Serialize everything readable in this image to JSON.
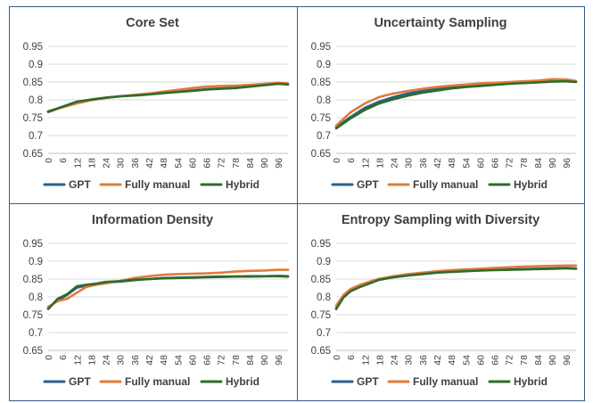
{
  "colors": {
    "GPT": "#2b5f8a",
    "Fully manual": "#e07b39",
    "Hybrid": "#2e6b2a"
  },
  "legend": [
    "GPT",
    "Fully manual",
    "Hybrid"
  ],
  "chart_data": [
    {
      "type": "line",
      "title": "Core Set",
      "ylim": [
        0.65,
        0.95
      ],
      "yticks": [
        "0.95",
        "0.9",
        "0.85",
        "0.8",
        "0.75",
        "0.7",
        "0.65"
      ],
      "xticks": [
        "0",
        "6",
        "12",
        "18",
        "24",
        "30",
        "36",
        "42",
        "48",
        "54",
        "60",
        "66",
        "72",
        "78",
        "84",
        "90",
        "96"
      ],
      "xlim": [
        0,
        100
      ],
      "grid": true,
      "legend_position": "bottom",
      "series": [
        {
          "name": "GPT",
          "points": [
            [
              0,
              0.766
            ],
            [
              6,
              0.78
            ],
            [
              12,
              0.793
            ],
            [
              18,
              0.8
            ],
            [
              24,
              0.806
            ],
            [
              30,
              0.81
            ],
            [
              36,
              0.813
            ],
            [
              42,
              0.816
            ],
            [
              48,
              0.82
            ],
            [
              54,
              0.823
            ],
            [
              60,
              0.826
            ],
            [
              66,
              0.83
            ],
            [
              72,
              0.832
            ],
            [
              78,
              0.834
            ],
            [
              84,
              0.838
            ],
            [
              90,
              0.842
            ],
            [
              96,
              0.846
            ],
            [
              100,
              0.844
            ]
          ]
        },
        {
          "name": "Fully manual",
          "points": [
            [
              0,
              0.768
            ],
            [
              6,
              0.779
            ],
            [
              12,
              0.79
            ],
            [
              18,
              0.799
            ],
            [
              24,
              0.805
            ],
            [
              30,
              0.81
            ],
            [
              36,
              0.814
            ],
            [
              42,
              0.818
            ],
            [
              48,
              0.823
            ],
            [
              54,
              0.828
            ],
            [
              60,
              0.833
            ],
            [
              66,
              0.837
            ],
            [
              72,
              0.839
            ],
            [
              78,
              0.84
            ],
            [
              84,
              0.842
            ],
            [
              90,
              0.845
            ],
            [
              96,
              0.848
            ],
            [
              100,
              0.846
            ]
          ]
        },
        {
          "name": "Hybrid",
          "points": [
            [
              0,
              0.767
            ],
            [
              6,
              0.781
            ],
            [
              12,
              0.795
            ],
            [
              18,
              0.801
            ],
            [
              24,
              0.806
            ],
            [
              30,
              0.81
            ],
            [
              36,
              0.812
            ],
            [
              42,
              0.815
            ],
            [
              48,
              0.819
            ],
            [
              54,
              0.822
            ],
            [
              60,
              0.825
            ],
            [
              66,
              0.829
            ],
            [
              72,
              0.831
            ],
            [
              78,
              0.833
            ],
            [
              84,
              0.837
            ],
            [
              90,
              0.841
            ],
            [
              96,
              0.845
            ],
            [
              100,
              0.843
            ]
          ]
        }
      ]
    },
    {
      "type": "line",
      "title": "Uncertainty Sampling",
      "ylim": [
        0.65,
        0.95
      ],
      "yticks": [
        "0.95",
        "0.9",
        "0.85",
        "0.8",
        "0.75",
        "0.7",
        "0.65"
      ],
      "xticks": [
        "0",
        "6",
        "12",
        "18",
        "24",
        "30",
        "36",
        "42",
        "48",
        "54",
        "60",
        "66",
        "72",
        "78",
        "84",
        "90",
        "96"
      ],
      "xlim": [
        0,
        100
      ],
      "grid": true,
      "legend_position": "bottom",
      "series": [
        {
          "name": "GPT",
          "points": [
            [
              0,
              0.723
            ],
            [
              6,
              0.752
            ],
            [
              12,
              0.778
            ],
            [
              18,
              0.795
            ],
            [
              24,
              0.808
            ],
            [
              30,
              0.818
            ],
            [
              36,
              0.825
            ],
            [
              42,
              0.832
            ],
            [
              48,
              0.837
            ],
            [
              54,
              0.841
            ],
            [
              60,
              0.843
            ],
            [
              66,
              0.845
            ],
            [
              72,
              0.847
            ],
            [
              78,
              0.849
            ],
            [
              84,
              0.851
            ],
            [
              90,
              0.852
            ],
            [
              96,
              0.853
            ],
            [
              100,
              0.851
            ]
          ]
        },
        {
          "name": "Fully manual",
          "points": [
            [
              0,
              0.728
            ],
            [
              6,
              0.765
            ],
            [
              12,
              0.79
            ],
            [
              18,
              0.808
            ],
            [
              24,
              0.818
            ],
            [
              30,
              0.825
            ],
            [
              36,
              0.831
            ],
            [
              42,
              0.836
            ],
            [
              48,
              0.84
            ],
            [
              54,
              0.843
            ],
            [
              60,
              0.846
            ],
            [
              66,
              0.848
            ],
            [
              72,
              0.85
            ],
            [
              78,
              0.852
            ],
            [
              84,
              0.854
            ],
            [
              90,
              0.858
            ],
            [
              96,
              0.857
            ],
            [
              100,
              0.853
            ]
          ]
        },
        {
          "name": "Hybrid",
          "points": [
            [
              0,
              0.72
            ],
            [
              6,
              0.748
            ],
            [
              12,
              0.772
            ],
            [
              18,
              0.79
            ],
            [
              24,
              0.802
            ],
            [
              30,
              0.812
            ],
            [
              36,
              0.82
            ],
            [
              42,
              0.826
            ],
            [
              48,
              0.832
            ],
            [
              54,
              0.836
            ],
            [
              60,
              0.839
            ],
            [
              66,
              0.842
            ],
            [
              72,
              0.845
            ],
            [
              78,
              0.847
            ],
            [
              84,
              0.849
            ],
            [
              90,
              0.851
            ],
            [
              96,
              0.852
            ],
            [
              100,
              0.85
            ]
          ]
        }
      ]
    },
    {
      "type": "line",
      "title": "Information Density",
      "ylim": [
        0.65,
        0.95
      ],
      "yticks": [
        "0.95",
        "0.9",
        "0.85",
        "0.8",
        "0.75",
        "0.7",
        "0.65"
      ],
      "xticks": [
        "0",
        "6",
        "12",
        "18",
        "24",
        "30",
        "36",
        "42",
        "48",
        "54",
        "60",
        "66",
        "72",
        "78",
        "84",
        "90",
        "96"
      ],
      "xlim": [
        0,
        100
      ],
      "grid": true,
      "legend_position": "bottom",
      "series": [
        {
          "name": "GPT",
          "points": [
            [
              0,
              0.769
            ],
            [
              4,
              0.79
            ],
            [
              8,
              0.806
            ],
            [
              12,
              0.826
            ],
            [
              16,
              0.832
            ],
            [
              20,
              0.836
            ],
            [
              24,
              0.84
            ],
            [
              30,
              0.843
            ],
            [
              36,
              0.847
            ],
            [
              42,
              0.85
            ],
            [
              48,
              0.853
            ],
            [
              54,
              0.854
            ],
            [
              60,
              0.855
            ],
            [
              66,
              0.856
            ],
            [
              72,
              0.857
            ],
            [
              78,
              0.857
            ],
            [
              84,
              0.858
            ],
            [
              90,
              0.858
            ],
            [
              96,
              0.859
            ],
            [
              100,
              0.858
            ]
          ]
        },
        {
          "name": "Fully manual",
          "points": [
            [
              0,
              0.772
            ],
            [
              4,
              0.788
            ],
            [
              8,
              0.795
            ],
            [
              12,
              0.812
            ],
            [
              16,
              0.828
            ],
            [
              20,
              0.834
            ],
            [
              24,
              0.838
            ],
            [
              30,
              0.845
            ],
            [
              36,
              0.853
            ],
            [
              42,
              0.858
            ],
            [
              48,
              0.862
            ],
            [
              54,
              0.864
            ],
            [
              60,
              0.865
            ],
            [
              66,
              0.866
            ],
            [
              72,
              0.868
            ],
            [
              78,
              0.871
            ],
            [
              84,
              0.873
            ],
            [
              90,
              0.874
            ],
            [
              96,
              0.876
            ],
            [
              100,
              0.876
            ]
          ]
        },
        {
          "name": "Hybrid",
          "points": [
            [
              0,
              0.766
            ],
            [
              4,
              0.795
            ],
            [
              8,
              0.808
            ],
            [
              12,
              0.83
            ],
            [
              16,
              0.834
            ],
            [
              20,
              0.837
            ],
            [
              24,
              0.842
            ],
            [
              30,
              0.844
            ],
            [
              36,
              0.848
            ],
            [
              42,
              0.85
            ],
            [
              48,
              0.852
            ],
            [
              54,
              0.853
            ],
            [
              60,
              0.854
            ],
            [
              66,
              0.855
            ],
            [
              72,
              0.856
            ],
            [
              78,
              0.857
            ],
            [
              84,
              0.857
            ],
            [
              90,
              0.858
            ],
            [
              96,
              0.858
            ],
            [
              100,
              0.857
            ]
          ]
        }
      ]
    },
    {
      "type": "line",
      "title": "Entropy Sampling with Diversity",
      "ylim": [
        0.65,
        0.95
      ],
      "yticks": [
        "0.95",
        "0.9",
        "0.85",
        "0.8",
        "0.75",
        "0.7",
        "0.65"
      ],
      "xticks": [
        "0",
        "6",
        "12",
        "18",
        "24",
        "30",
        "36",
        "42",
        "48",
        "54",
        "60",
        "66",
        "72",
        "78",
        "84",
        "90",
        "96"
      ],
      "xlim": [
        0,
        100
      ],
      "grid": true,
      "legend_position": "bottom",
      "series": [
        {
          "name": "GPT",
          "points": [
            [
              0,
              0.768
            ],
            [
              3,
              0.8
            ],
            [
              6,
              0.818
            ],
            [
              10,
              0.83
            ],
            [
              14,
              0.84
            ],
            [
              18,
              0.85
            ],
            [
              24,
              0.857
            ],
            [
              30,
              0.862
            ],
            [
              36,
              0.866
            ],
            [
              42,
              0.869
            ],
            [
              48,
              0.871
            ],
            [
              54,
              0.873
            ],
            [
              60,
              0.875
            ],
            [
              66,
              0.876
            ],
            [
              72,
              0.877
            ],
            [
              78,
              0.878
            ],
            [
              84,
              0.879
            ],
            [
              90,
              0.88
            ],
            [
              96,
              0.881
            ],
            [
              100,
              0.88
            ]
          ]
        },
        {
          "name": "Fully manual",
          "points": [
            [
              0,
              0.775
            ],
            [
              3,
              0.805
            ],
            [
              6,
              0.822
            ],
            [
              10,
              0.834
            ],
            [
              14,
              0.843
            ],
            [
              18,
              0.851
            ],
            [
              24,
              0.858
            ],
            [
              30,
              0.864
            ],
            [
              36,
              0.868
            ],
            [
              42,
              0.872
            ],
            [
              48,
              0.875
            ],
            [
              54,
              0.877
            ],
            [
              60,
              0.879
            ],
            [
              66,
              0.881
            ],
            [
              72,
              0.883
            ],
            [
              78,
              0.885
            ],
            [
              84,
              0.886
            ],
            [
              90,
              0.887
            ],
            [
              96,
              0.888
            ],
            [
              100,
              0.888
            ]
          ]
        },
        {
          "name": "Hybrid",
          "points": [
            [
              0,
              0.766
            ],
            [
              3,
              0.798
            ],
            [
              6,
              0.816
            ],
            [
              10,
              0.828
            ],
            [
              14,
              0.838
            ],
            [
              18,
              0.848
            ],
            [
              24,
              0.855
            ],
            [
              30,
              0.86
            ],
            [
              36,
              0.864
            ],
            [
              42,
              0.868
            ],
            [
              48,
              0.87
            ],
            [
              54,
              0.872
            ],
            [
              60,
              0.874
            ],
            [
              66,
              0.875
            ],
            [
              72,
              0.876
            ],
            [
              78,
              0.877
            ],
            [
              84,
              0.878
            ],
            [
              90,
              0.879
            ],
            [
              96,
              0.88
            ],
            [
              100,
              0.879
            ]
          ]
        }
      ]
    }
  ]
}
